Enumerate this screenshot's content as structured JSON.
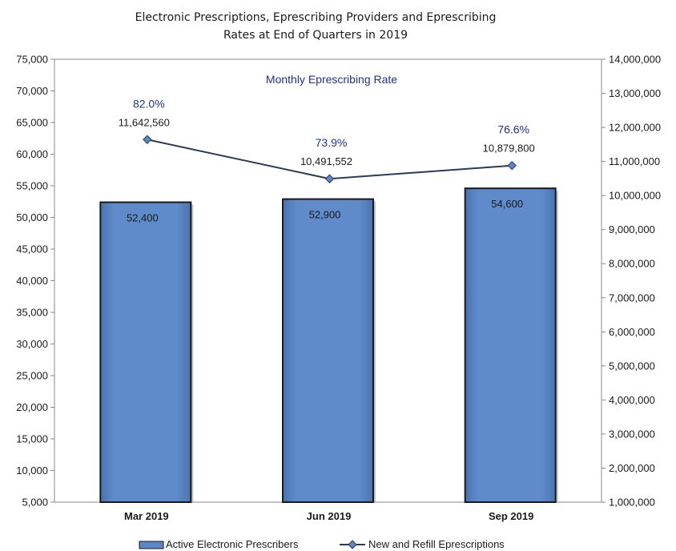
{
  "chart_data": {
    "type": "bar",
    "title": [
      "Electronic Prescriptions, Eprescribing Providers and Eprescribing",
      "Rates at End of Quarters in 2019"
    ],
    "categories": [
      "Mar 2019",
      "Jun 2019",
      "Sep 2019"
    ],
    "annotation": "Monthly Eprescribing Rate",
    "rates": [
      "82.0%",
      "73.9%",
      "76.6%"
    ],
    "series": [
      {
        "name": "Active Electronic Prescribers",
        "type": "bar",
        "axis": "left",
        "values": [
          52400,
          52900,
          54600
        ],
        "labels": [
          "52,400",
          "52,900",
          "54,600"
        ],
        "color": "#5b87c6"
      },
      {
        "name": "New and Refill Eprescriptions",
        "type": "line",
        "axis": "right",
        "values": [
          11642560,
          10491552,
          10879800
        ],
        "labels": [
          "11,642,560",
          "10,491,552",
          "10,879,800"
        ],
        "color": "#2a3a5c"
      }
    ],
    "ylim_left": [
      5000,
      75000
    ],
    "ylim_right": [
      1000000,
      14000000
    ],
    "yticks_left": [
      "75,000",
      "70,000",
      "65,000",
      "60,000",
      "55,000",
      "50,000",
      "45,000",
      "40,000",
      "35,000",
      "30,000",
      "25,000",
      "20,000",
      "15,000",
      "10,000",
      "5,000"
    ],
    "yticks_right": [
      "14,000,000",
      "13,000,000",
      "12,000,000",
      "11,000,000",
      "10,000,000",
      "9,000,000",
      "8,000,000",
      "7,000,000",
      "6,000,000",
      "5,000,000",
      "4,000,000",
      "3,000,000",
      "2,000,000",
      "1,000,000"
    ],
    "grid": false,
    "legend": "bottom"
  }
}
